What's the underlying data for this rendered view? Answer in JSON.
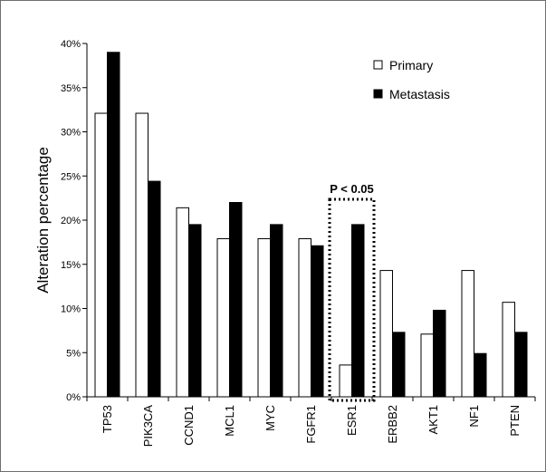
{
  "chart_data": {
    "type": "bar",
    "title": "",
    "xlabel": "",
    "ylabel": "Alteration percentage",
    "ylim": [
      0,
      40
    ],
    "yticks": [
      "0%",
      "5%",
      "10%",
      "15%",
      "20%",
      "25%",
      "30%",
      "35%",
      "40%"
    ],
    "categories": [
      "TP53",
      "PIK3CA",
      "CCND1",
      "MCL1",
      "MYC",
      "FGFR1",
      "ESR1",
      "ERBB2",
      "AKT1",
      "NF1",
      "PTEN"
    ],
    "series": [
      {
        "name": "Primary",
        "color": "#ffffff",
        "values": [
          32.1,
          32.1,
          21.4,
          17.9,
          17.9,
          17.9,
          3.6,
          14.3,
          7.1,
          14.3,
          10.7
        ]
      },
      {
        "name": "Metastasis",
        "color": "#000000",
        "values": [
          39.0,
          24.4,
          19.5,
          22.0,
          19.5,
          17.1,
          19.5,
          7.3,
          9.8,
          4.9,
          7.3
        ]
      }
    ],
    "legend_position": "top-right",
    "grid": false,
    "annotation": {
      "text": "P < 0.05",
      "category": "ESR1",
      "style": "dotted-box"
    }
  }
}
